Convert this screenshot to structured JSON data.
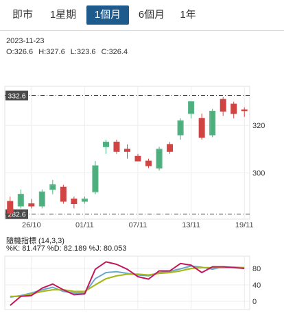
{
  "tabs": [
    {
      "label": "即市",
      "active": false
    },
    {
      "label": "1星期",
      "active": false
    },
    {
      "label": "1個月",
      "active": true
    },
    {
      "label": "6個月",
      "active": false
    },
    {
      "label": "1年",
      "active": false
    }
  ],
  "info": {
    "date": "2023-11-23",
    "open": "O:326.6",
    "high": "H:327.6",
    "low": "L:323.6",
    "close": "C:326.4"
  },
  "indicator": {
    "title": "隨機指標 (14,3,3)",
    "values_text": "%K: 81.477 %D: 82.189 %J: 80.053"
  },
  "colors": {
    "up": "#4caf7d",
    "down": "#d04444",
    "tab_active": "#1f5a8c",
    "k_line": "#6aa7cc",
    "d_line": "#a8b81c",
    "j_line": "#c2185b"
  },
  "chart_data": [
    {
      "type": "candlestick",
      "title": "",
      "ylim": [
        280.5,
        336.5
      ],
      "yticks": [
        300,
        320
      ],
      "ytick_labels": [
        "300",
        "320"
      ],
      "x_tick_labels": [
        "26/10",
        "01/11",
        "07/11",
        "13/11",
        "19/11"
      ],
      "x_tick_indices": [
        2,
        7,
        12,
        17,
        22
      ],
      "reference_lines": [
        332.6,
        282.6
      ],
      "reference_labels": [
        "332.6",
        "282.6"
      ],
      "candles": [
        {
          "o": 288,
          "h": 290,
          "l": 281,
          "c": 283
        },
        {
          "o": 286,
          "h": 293,
          "l": 285,
          "c": 291
        },
        {
          "o": 287,
          "h": 289,
          "l": 285,
          "c": 286
        },
        {
          "o": 286,
          "h": 293,
          "l": 285,
          "c": 292
        },
        {
          "o": 293,
          "h": 297,
          "l": 291,
          "c": 295
        },
        {
          "o": 294,
          "h": 295,
          "l": 287,
          "c": 288
        },
        {
          "o": 289,
          "h": 290,
          "l": 285,
          "c": 287
        },
        {
          "o": 288,
          "h": 290,
          "l": 287,
          "c": 289
        },
        {
          "o": 292,
          "h": 305,
          "l": 291,
          "c": 303
        },
        {
          "o": 311,
          "h": 314,
          "l": 308,
          "c": 313
        },
        {
          "o": 313,
          "h": 314,
          "l": 308,
          "c": 309
        },
        {
          "o": 310,
          "h": 312,
          "l": 306,
          "c": 309
        },
        {
          "o": 307,
          "h": 308,
          "l": 305,
          "c": 305
        },
        {
          "o": 305,
          "h": 306,
          "l": 302,
          "c": 303
        },
        {
          "o": 302,
          "h": 311,
          "l": 301,
          "c": 310
        },
        {
          "o": 312,
          "h": 313,
          "l": 308,
          "c": 309
        },
        {
          "o": 316,
          "h": 323,
          "l": 314,
          "c": 322
        },
        {
          "o": 325,
          "h": 330,
          "l": 323,
          "c": 330
        },
        {
          "o": 323,
          "h": 325,
          "l": 314,
          "c": 315
        },
        {
          "o": 316,
          "h": 327,
          "l": 315,
          "c": 326
        },
        {
          "o": 331,
          "h": 332,
          "l": 324,
          "c": 326
        },
        {
          "o": 329,
          "h": 330,
          "l": 323,
          "c": 325
        },
        {
          "o": 326.6,
          "h": 327.6,
          "l": 323.6,
          "c": 326.4
        }
      ]
    },
    {
      "type": "line",
      "title": "隨機指標 (14,3,3)",
      "ylim": [
        -20,
        110
      ],
      "yticks": [
        0,
        40,
        80
      ],
      "ytick_labels": [
        "0",
        "40",
        "80"
      ],
      "series": [
        {
          "name": "%K",
          "values": [
            10,
            14,
            20,
            28,
            34,
            24,
            20,
            20,
            55,
            70,
            72,
            68,
            64,
            62,
            70,
            73,
            79,
            86,
            83,
            78,
            84,
            83,
            82
          ]
        },
        {
          "name": "%D",
          "values": [
            12,
            12,
            18,
            24,
            28,
            28,
            24,
            24,
            40,
            55,
            62,
            66,
            66,
            64,
            68,
            70,
            74,
            80,
            82,
            82,
            82,
            83,
            82
          ]
        },
        {
          "name": "%J",
          "values": [
            -10,
            12,
            14,
            32,
            42,
            28,
            16,
            18,
            78,
            96,
            90,
            78,
            60,
            54,
            74,
            74,
            92,
            88,
            70,
            84,
            84,
            82,
            80
          ]
        }
      ]
    }
  ]
}
